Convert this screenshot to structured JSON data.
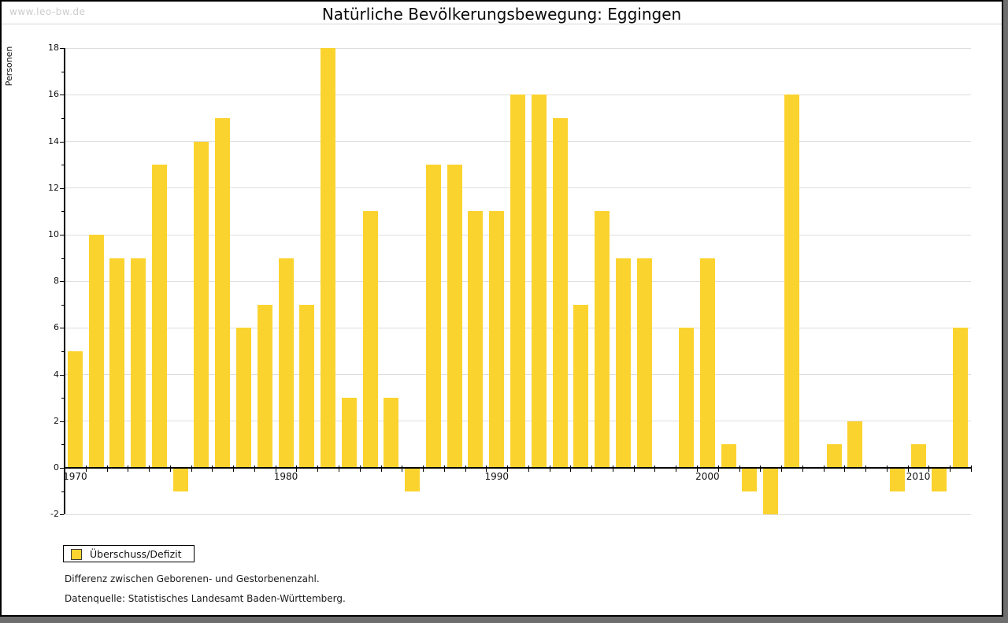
{
  "watermark": "www.leo-bw.de",
  "header": {
    "title": "Natürliche Bevölkerungsbewegung: Eggingen"
  },
  "legend": {
    "label": "Überschuss/Defizit"
  },
  "footnotes": {
    "line1": "Differenz zwischen Geborenen- und Gestorbenenzahl.",
    "line2": "Datenquelle: Statistisches Landesamt Baden-Württemberg."
  },
  "colors": {
    "bar": "#fbd32f",
    "gridline": "#dedede",
    "axis": "#000000",
    "watermark": "#cccccc",
    "backdrop": "#6e6e6e"
  },
  "chart_data": {
    "type": "bar",
    "title": "Natürliche Bevölkerungsbewegung: Eggingen",
    "xlabel": "",
    "ylabel": "Personen",
    "categories": [
      1970,
      1971,
      1972,
      1973,
      1974,
      1975,
      1976,
      1977,
      1978,
      1979,
      1980,
      1981,
      1982,
      1983,
      1984,
      1985,
      1986,
      1987,
      1988,
      1989,
      1990,
      1991,
      1992,
      1993,
      1994,
      1995,
      1996,
      1997,
      1998,
      1999,
      2000,
      2001,
      2002,
      2003,
      2004,
      2005,
      2006,
      2007,
      2008,
      2009,
      2010,
      2011,
      2012
    ],
    "values": [
      5,
      10,
      9,
      9,
      13,
      -1,
      14,
      15,
      6,
      7,
      9,
      7,
      18,
      3,
      11,
      3,
      -1,
      13,
      13,
      11,
      11,
      16,
      16,
      15,
      7,
      11,
      9,
      9,
      0,
      6,
      9,
      1,
      -1,
      -2,
      16,
      0,
      1,
      2,
      0,
      -1,
      1,
      -1,
      6
    ],
    "series_name": "Überschuss/Defizit",
    "ylim": [
      -2,
      18
    ],
    "ytick_step": 2,
    "y_tick_labels": [
      "18",
      "16",
      "14",
      "12",
      "10",
      "8",
      "6",
      "4",
      "2",
      "0",
      "-2"
    ],
    "x_tick_labels": [
      "1970",
      "1980",
      "1990",
      "2000",
      "2010"
    ],
    "labeled_years": [
      1970,
      1980,
      1990,
      2000,
      2010
    ],
    "grid": true,
    "legend_position": "bottom-left"
  }
}
